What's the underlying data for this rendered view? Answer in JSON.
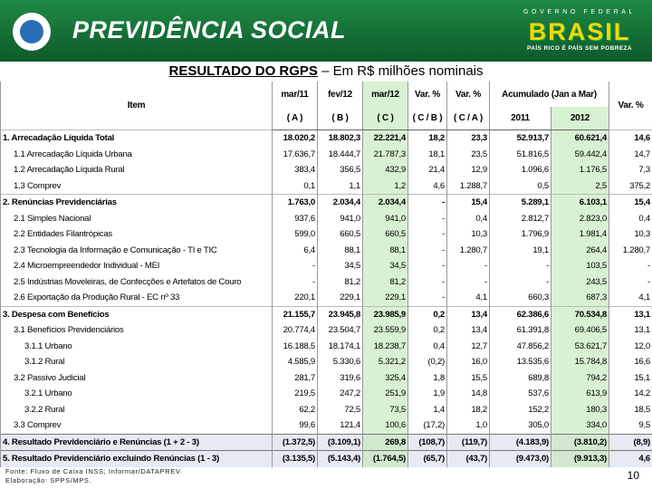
{
  "header": {
    "title": "PREVIDÊNCIA SOCIAL",
    "government": "GOVERNO FEDERAL",
    "brand": "BRASIL",
    "slogan": "PAÍS RICO É PAÍS SEM POBREZA"
  },
  "heading": {
    "title": "RESULTADO DO RGPS",
    "subtitle": "– Em R$ milhões nominais"
  },
  "table": {
    "header": {
      "item": "Item",
      "periods": [
        "mar/11",
        "fev/12",
        "mar/12",
        "Var. %",
        "Var. %"
      ],
      "accumulated": "Acumulado (Jan a Mar)",
      "total_variation": "Var. %",
      "sub": [
        "( A )",
        "( B )",
        "( C )",
        "( C / B )",
        "( C / A )",
        "2011",
        "2012"
      ]
    },
    "rows": [
      [
        "1. Arrecadação Líquida Total",
        "18.020,2",
        "18.802,3",
        "22.221,4",
        "18,2",
        "23,3",
        "52.913,7",
        "60.621,4",
        "14,6"
      ],
      [
        "1.1 Arrecadação Líquida Urbana",
        "17.636,7",
        "18.444,7",
        "21.787,3",
        "18,1",
        "23,5",
        "51.816,5",
        "59.442,4",
        "14,7"
      ],
      [
        "1.2 Arrecadação Líquida Rural",
        "383,4",
        "356,5",
        "432,9",
        "21,4",
        "12,9",
        "1.096,6",
        "1.176,5",
        "7,3"
      ],
      [
        "1.3 Comprev",
        "0,1",
        "1,1",
        "1,2",
        "4,6",
        "1.288,7",
        "0,5",
        "2,5",
        "375,2"
      ],
      [
        "2. Renúncias Previdenciárias",
        "1.763,0",
        "2.034,4",
        "2.034,4",
        "-",
        "15,4",
        "5.289,1",
        "6.103,1",
        "15,4"
      ],
      [
        "2.1 Simples Nacional",
        "937,6",
        "941,0",
        "941,0",
        "-",
        "0,4",
        "2.812,7",
        "2.823,0",
        "0,4"
      ],
      [
        "2.2 Entidades Filantrópicas",
        "599,0",
        "660,5",
        "660,5",
        "-",
        "10,3",
        "1.796,9",
        "1.981,4",
        "10,3"
      ],
      [
        "2.3 Tecnologia da Informação e Comunicação - TI e TIC",
        "6,4",
        "88,1",
        "88,1",
        "-",
        "1.280,7",
        "19,1",
        "264,4",
        "1.280,7"
      ],
      [
        "2.4 Microempreendedor Individual - MEI",
        "-",
        "34,5",
        "34,5",
        "-",
        "-",
        "-",
        "103,5",
        "-"
      ],
      [
        "2.5 Indústrias Moveleiras, de Confecções e Artefatos de Couro",
        "-",
        "81,2",
        "81,2",
        "-",
        "-",
        "-",
        "243,5",
        "-"
      ],
      [
        "2.6 Exportação da Produção Rural - EC nº 33",
        "220,1",
        "229,1",
        "229,1",
        "-",
        "4,1",
        "660,3",
        "687,3",
        "4,1"
      ],
      [
        "3. Despesa com Benefícios",
        "21.155,7",
        "23.945,8",
        "23.985,9",
        "0,2",
        "13,4",
        "62.386,6",
        "70.534,8",
        "13,1"
      ],
      [
        "3.1 Benefícios Previdenciários",
        "20.774,4",
        "23.504,7",
        "23.559,9",
        "0,2",
        "13,4",
        "61.391,8",
        "69.406,5",
        "13,1"
      ],
      [
        "3.1.1 Urbano",
        "16.188,5",
        "18.174,1",
        "18.238,7",
        "0,4",
        "12,7",
        "47.856,2",
        "53.621,7",
        "12,0"
      ],
      [
        "3.1.2 Rural",
        "4.585,9",
        "5.330,6",
        "5.321,2",
        "(0,2)",
        "16,0",
        "13.535,6",
        "15.784,8",
        "16,6"
      ],
      [
        "3.2 Passivo Judicial",
        "281,7",
        "319,6",
        "325,4",
        "1,8",
        "15,5",
        "689,8",
        "794,2",
        "15,1"
      ],
      [
        "3.2.1 Urbano",
        "219,5",
        "247,2",
        "251,9",
        "1,9",
        "14,8",
        "537,6",
        "613,9",
        "14,2"
      ],
      [
        "3.2.2 Rural",
        "62,2",
        "72,5",
        "73,5",
        "1,4",
        "18,2",
        "152,2",
        "180,3",
        "18,5"
      ],
      [
        "3.3 Comprev",
        "99,6",
        "121,4",
        "100,6",
        "(17,2)",
        "1,0",
        "305,0",
        "334,0",
        "9,5"
      ],
      [
        "4. Resultado Previdenciário e Renúncias (1 + 2 - 3)",
        "(1.372,5)",
        "(3.109,1)",
        "269,8",
        "(108,7)",
        "(119,7)",
        "(4.183,9)",
        "(3.810,2)",
        "(8,9)"
      ],
      [
        "5. Resultado Previdenciário excluindo Renúncias (1 - 3)",
        "(3.135,5)",
        "(5.143,4)",
        "(1.764,5)",
        "(65,7)",
        "(43,7)",
        "(9.473,0)",
        "(9.913,3)",
        "4,6"
      ]
    ]
  },
  "footer": {
    "source": "Fonte: Fluxo de Caixa INSS; Informar/DATAPREV.",
    "elaboration": "Elaboração: SPPS/MPS.",
    "page": "10"
  }
}
